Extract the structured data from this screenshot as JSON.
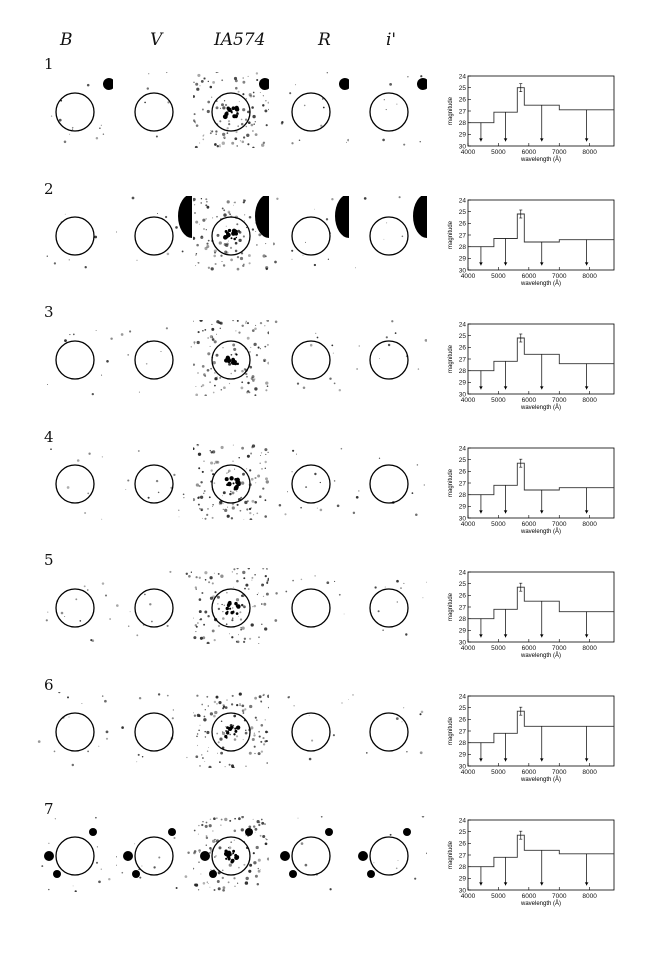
{
  "band_headers": [
    "B",
    "V",
    "IA574",
    "R",
    "i'"
  ],
  "axis": {
    "ylabel": "magnitude",
    "xlabel": "wavelength (Å)",
    "yticks": [
      24,
      25,
      26,
      27,
      28,
      29,
      30
    ],
    "xticks": [
      4000,
      5000,
      6000,
      7000,
      8000
    ]
  },
  "chart_data": [
    {
      "type": "line",
      "panel_label": "1",
      "xlim": [
        4000,
        8800
      ],
      "ylim": [
        30,
        24
      ],
      "series": [
        {
          "values": [
            {
              "band": "B",
              "x": [
                4000,
                4850
              ],
              "y": 28.0,
              "upper_limit": true
            },
            {
              "band": "V",
              "x": [
                4850,
                5620
              ],
              "y": 27.1,
              "upper_limit": true
            },
            {
              "band": "IA574",
              "x": [
                5620,
                5850
              ],
              "y": 25.0,
              "upper_limit": false
            },
            {
              "band": "R",
              "x": [
                5850,
                7000
              ],
              "y": 26.5,
              "upper_limit": true
            },
            {
              "band": "i'",
              "x": [
                7000,
                8800
              ],
              "y": 26.9,
              "upper_limit": true
            }
          ]
        }
      ]
    },
    {
      "type": "line",
      "panel_label": "2",
      "xlim": [
        4000,
        8800
      ],
      "ylim": [
        30,
        24
      ],
      "series": [
        {
          "values": [
            {
              "band": "B",
              "x": [
                4000,
                4850
              ],
              "y": 28.0,
              "upper_limit": true
            },
            {
              "band": "V",
              "x": [
                4850,
                5620
              ],
              "y": 27.3,
              "upper_limit": true
            },
            {
              "band": "IA574",
              "x": [
                5620,
                5850
              ],
              "y": 25.2,
              "upper_limit": false
            },
            {
              "band": "R",
              "x": [
                5850,
                7000
              ],
              "y": 27.6,
              "upper_limit": true
            },
            {
              "band": "i'",
              "x": [
                7000,
                8800
              ],
              "y": 27.4,
              "upper_limit": true
            }
          ]
        }
      ]
    },
    {
      "type": "line",
      "panel_label": "3",
      "xlim": [
        4000,
        8800
      ],
      "ylim": [
        30,
        24
      ],
      "series": [
        {
          "values": [
            {
              "band": "B",
              "x": [
                4000,
                4850
              ],
              "y": 28.0,
              "upper_limit": true
            },
            {
              "band": "V",
              "x": [
                4850,
                5620
              ],
              "y": 27.2,
              "upper_limit": true
            },
            {
              "band": "IA574",
              "x": [
                5620,
                5850
              ],
              "y": 25.2,
              "upper_limit": false
            },
            {
              "band": "R",
              "x": [
                5850,
                7000
              ],
              "y": 26.6,
              "upper_limit": true
            },
            {
              "band": "i'",
              "x": [
                7000,
                8800
              ],
              "y": 27.4,
              "upper_limit": true
            }
          ]
        }
      ]
    },
    {
      "type": "line",
      "panel_label": "4",
      "xlim": [
        4000,
        8800
      ],
      "ylim": [
        30,
        24
      ],
      "series": [
        {
          "values": [
            {
              "band": "B",
              "x": [
                4000,
                4850
              ],
              "y": 28.0,
              "upper_limit": true
            },
            {
              "band": "V",
              "x": [
                4850,
                5620
              ],
              "y": 27.2,
              "upper_limit": true
            },
            {
              "band": "IA574",
              "x": [
                5620,
                5850
              ],
              "y": 25.3,
              "upper_limit": false
            },
            {
              "band": "R",
              "x": [
                5850,
                7000
              ],
              "y": 27.6,
              "upper_limit": true
            },
            {
              "band": "i'",
              "x": [
                7000,
                8800
              ],
              "y": 27.4,
              "upper_limit": true
            }
          ]
        }
      ]
    },
    {
      "type": "line",
      "panel_label": "5",
      "xlim": [
        4000,
        8800
      ],
      "ylim": [
        30,
        24
      ],
      "series": [
        {
          "values": [
            {
              "band": "B",
              "x": [
                4000,
                4850
              ],
              "y": 28.0,
              "upper_limit": true
            },
            {
              "band": "V",
              "x": [
                4850,
                5620
              ],
              "y": 27.2,
              "upper_limit": true
            },
            {
              "band": "IA574",
              "x": [
                5620,
                5850
              ],
              "y": 25.3,
              "upper_limit": false
            },
            {
              "band": "R",
              "x": [
                5850,
                7000
              ],
              "y": 26.5,
              "upper_limit": true
            },
            {
              "band": "i'",
              "x": [
                7000,
                8800
              ],
              "y": 27.4,
              "upper_limit": true
            }
          ]
        }
      ]
    },
    {
      "type": "line",
      "panel_label": "6",
      "xlim": [
        4000,
        8800
      ],
      "ylim": [
        30,
        24
      ],
      "series": [
        {
          "values": [
            {
              "band": "B",
              "x": [
                4000,
                4850
              ],
              "y": 28.0,
              "upper_limit": true
            },
            {
              "band": "V",
              "x": [
                4850,
                5620
              ],
              "y": 27.2,
              "upper_limit": true
            },
            {
              "band": "IA574",
              "x": [
                5620,
                5850
              ],
              "y": 25.3,
              "upper_limit": false
            },
            {
              "band": "R",
              "x": [
                5850,
                7000
              ],
              "y": 26.6,
              "upper_limit": true
            },
            {
              "band": "i'",
              "x": [
                7000,
                8800
              ],
              "y": 26.6,
              "upper_limit": true
            }
          ]
        }
      ]
    },
    {
      "type": "line",
      "panel_label": "7",
      "xlim": [
        4000,
        8800
      ],
      "ylim": [
        30,
        24
      ],
      "series": [
        {
          "values": [
            {
              "band": "B",
              "x": [
                4000,
                4850
              ],
              "y": 28.0,
              "upper_limit": true
            },
            {
              "band": "V",
              "x": [
                4850,
                5620
              ],
              "y": 27.2,
              "upper_limit": true
            },
            {
              "band": "IA574",
              "x": [
                5620,
                5850
              ],
              "y": 25.3,
              "upper_limit": false
            },
            {
              "band": "R",
              "x": [
                5850,
                7000
              ],
              "y": 26.6,
              "upper_limit": true
            },
            {
              "band": "i'",
              "x": [
                7000,
                8800
              ],
              "y": 26.9,
              "upper_limit": true
            }
          ]
        }
      ]
    }
  ]
}
